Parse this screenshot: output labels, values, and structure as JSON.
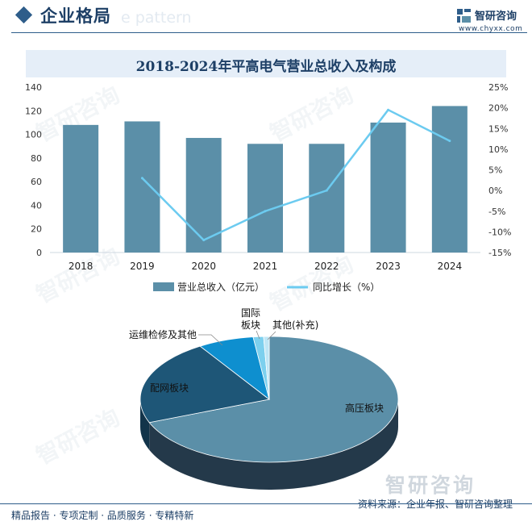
{
  "header": {
    "title": "企业格局",
    "bg_text": "e pattern"
  },
  "logo": {
    "name": "智研咨询",
    "url": "www.chyxx.com"
  },
  "watermark": {
    "text": "智研咨询",
    "brand": "智研咨询"
  },
  "footer": {
    "left": "精品报告 · 专项定制 · 品质服务 · 专精特新",
    "source": "资料来源：企业年报、智研咨询整理"
  },
  "colors": {
    "bar": "#5b8fa8",
    "line": "#6ccbf0",
    "accent": "#2e5d8a"
  },
  "chart_data": [
    {
      "type": "bar",
      "title": "2018-2024年平高电气营业总收入及构成",
      "categories": [
        "2018",
        "2019",
        "2020",
        "2021",
        "2022",
        "2023",
        "2024"
      ],
      "series": [
        {
          "name": "营业总收入（亿元）",
          "type": "bar",
          "axis": "left",
          "values": [
            108,
            111,
            97,
            92,
            92,
            110,
            124
          ]
        },
        {
          "name": "同比增长（%）",
          "type": "line",
          "axis": "right",
          "values": [
            null,
            3,
            -12,
            -5,
            0,
            19.5,
            12
          ]
        }
      ],
      "y_left": {
        "ylim": [
          0,
          140
        ],
        "ticks": [
          "0",
          "20",
          "40",
          "60",
          "80",
          "100",
          "120",
          "140"
        ]
      },
      "y_right": {
        "ylim": [
          -15,
          25
        ],
        "ticks": [
          "-15%",
          "-10%",
          "-5%",
          "0%",
          "5%",
          "10%",
          "15%",
          "20%",
          "25%"
        ]
      },
      "legend": {
        "placement": "bottom"
      }
    },
    {
      "type": "pie",
      "style": "3d",
      "slices": [
        {
          "label": "高压板块",
          "value": 69,
          "color": "#5b8fa8",
          "side": "#24394a"
        },
        {
          "label": "配网板块",
          "value": 22,
          "color": "#1e5677",
          "side": "#12344a"
        },
        {
          "label": "运维检修及其他",
          "value": 7,
          "color": "#0e8fcf",
          "side": "#0a5f8a"
        },
        {
          "label": "国际板块",
          "value": 1.3,
          "color": "#7dd0ee",
          "side": "#4f9bb8"
        },
        {
          "label": "其他(补充)",
          "value": 0.7,
          "color": "#bfe6f5",
          "side": "#88b7c8"
        }
      ]
    }
  ]
}
